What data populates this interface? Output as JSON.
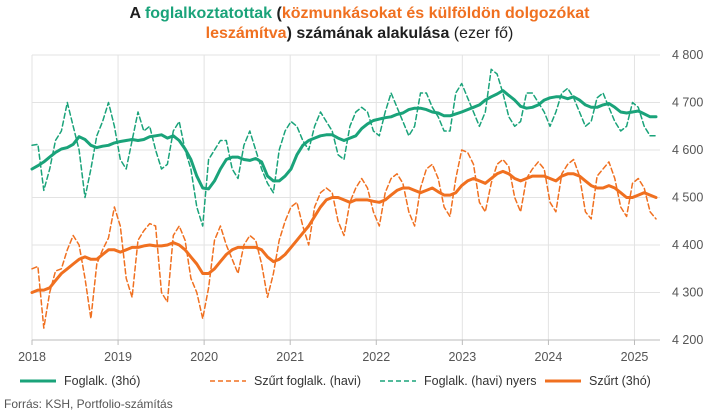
{
  "title": {
    "p1": "A ",
    "p2": "foglalkoztatottak",
    "p3": " (",
    "p4": "közmunkásokat és külföldön dolgozókat",
    "p5": "leszámítva",
    "p6": ") számának alakulása",
    "p7": " (ezer fő)"
  },
  "source": "Forrás: KSH, Portfolio-számítás",
  "colors": {
    "green": "#1aa37a",
    "orange": "#f07020",
    "grid": "#e3e3e3",
    "text": "#555555"
  },
  "chart_data": {
    "type": "line",
    "x_range": [
      2018.0,
      2025.25
    ],
    "x_ticks": [
      "2018",
      "2019",
      "2020",
      "2021",
      "2022",
      "2023",
      "2024",
      "2025"
    ],
    "ylim": [
      4200,
      4800
    ],
    "y_ticks": [
      "4 200",
      "4 300",
      "4 400",
      "4 500",
      "4 600",
      "4 700",
      "4 800"
    ],
    "y_axis_side": "right",
    "grid": true,
    "legend_position": "bottom",
    "series": [
      {
        "name": "Foglalk. (3hó)",
        "style": "solid",
        "color": "#1aa37a",
        "values": [
          4560,
          4567,
          4575,
          4585,
          4595,
          4602,
          4605,
          4612,
          4628,
          4622,
          4610,
          4605,
          4608,
          4610,
          4615,
          4618,
          4620,
          4622,
          4620,
          4622,
          4628,
          4630,
          4632,
          4625,
          4630,
          4620,
          4602,
          4580,
          4545,
          4520,
          4518,
          4535,
          4560,
          4580,
          4585,
          4585,
          4580,
          4578,
          4582,
          4575,
          4545,
          4535,
          4535,
          4545,
          4560,
          4590,
          4610,
          4620,
          4625,
          4630,
          4632,
          4632,
          4625,
          4620,
          4625,
          4630,
          4645,
          4655,
          4662,
          4665,
          4668,
          4670,
          4675,
          4678,
          4685,
          4688,
          4688,
          4685,
          4680,
          4678,
          4672,
          4672,
          4676,
          4680,
          4685,
          4690,
          4695,
          4705,
          4712,
          4718,
          4725,
          4715,
          4705,
          4692,
          4688,
          4690,
          4695,
          4705,
          4710,
          4712,
          4712,
          4708,
          4712,
          4705,
          4695,
          4690,
          4690,
          4695,
          4698,
          4690,
          4680,
          4678,
          4680,
          4682,
          4676,
          4670,
          4670
        ],
        "stroke_width": 3
      },
      {
        "name": "Szűrt foglalk. (havi)",
        "style": "dashed",
        "color": "#f07020",
        "values": [
          4350,
          4355,
          4225,
          4300,
          4345,
          4350,
          4390,
          4420,
          4400,
          4330,
          4245,
          4360,
          4390,
          4415,
          4480,
          4440,
          4330,
          4290,
          4410,
          4430,
          4445,
          4440,
          4300,
          4280,
          4420,
          4440,
          4410,
          4330,
          4300,
          4245,
          4310,
          4410,
          4440,
          4400,
          4370,
          4340,
          4400,
          4420,
          4410,
          4360,
          4290,
          4340,
          4410,
          4450,
          4480,
          4490,
          4440,
          4400,
          4480,
          4510,
          4520,
          4510,
          4450,
          4420,
          4490,
          4520,
          4540,
          4520,
          4470,
          4440,
          4510,
          4540,
          4550,
          4530,
          4470,
          4440,
          4520,
          4560,
          4570,
          4540,
          4480,
          4460,
          4540,
          4600,
          4595,
          4570,
          4490,
          4470,
          4530,
          4570,
          4580,
          4565,
          4500,
          4470,
          4540,
          4560,
          4575,
          4560,
          4490,
          4470,
          4550,
          4570,
          4580,
          4545,
          4470,
          4455,
          4545,
          4560,
          4575,
          4540,
          4480,
          4460,
          4530,
          4540,
          4520,
          4470,
          4455
        ]
      },
      {
        "name": "Foglalk. (havi) nyers",
        "style": "dashed",
        "color": "#1aa37a",
        "values": [
          4610,
          4612,
          4515,
          4560,
          4620,
          4640,
          4700,
          4650,
          4600,
          4500,
          4560,
          4630,
          4660,
          4700,
          4650,
          4580,
          4560,
          4620,
          4680,
          4640,
          4650,
          4600,
          4560,
          4570,
          4640,
          4660,
          4600,
          4560,
          4480,
          4440,
          4580,
          4600,
          4620,
          4620,
          4560,
          4540,
          4610,
          4640,
          4600,
          4560,
          4530,
          4510,
          4600,
          4640,
          4660,
          4650,
          4620,
          4600,
          4650,
          4680,
          4660,
          4640,
          4590,
          4580,
          4650,
          4680,
          4690,
          4680,
          4640,
          4630,
          4680,
          4720,
          4690,
          4660,
          4630,
          4650,
          4720,
          4720,
          4690,
          4670,
          4640,
          4640,
          4720,
          4740,
          4710,
          4680,
          4650,
          4680,
          4770,
          4760,
          4720,
          4670,
          4650,
          4660,
          4720,
          4720,
          4700,
          4680,
          4650,
          4680,
          4720,
          4730,
          4710,
          4680,
          4650,
          4660,
          4710,
          4720,
          4690,
          4660,
          4640,
          4650,
          4700,
          4690,
          4650,
          4630,
          4630
        ]
      },
      {
        "name": "Szűrt (3hó)",
        "style": "solid",
        "color": "#f07020",
        "values": [
          4300,
          4305,
          4305,
          4310,
          4325,
          4340,
          4350,
          4360,
          4370,
          4375,
          4370,
          4370,
          4380,
          4390,
          4390,
          4385,
          4390,
          4395,
          4395,
          4398,
          4400,
          4398,
          4398,
          4400,
          4405,
          4400,
          4390,
          4375,
          4360,
          4340,
          4340,
          4350,
          4365,
          4380,
          4390,
          4395,
          4395,
          4395,
          4395,
          4390,
          4375,
          4365,
          4370,
          4380,
          4395,
          4410,
          4425,
          4440,
          4460,
          4480,
          4495,
          4500,
          4500,
          4495,
          4490,
          4495,
          4495,
          4495,
          4492,
          4490,
          4495,
          4505,
          4515,
          4520,
          4520,
          4515,
          4510,
          4515,
          4520,
          4512,
          4505,
          4505,
          4510,
          4525,
          4535,
          4540,
          4535,
          4530,
          4540,
          4550,
          4555,
          4550,
          4540,
          4535,
          4540,
          4545,
          4545,
          4545,
          4540,
          4535,
          4545,
          4550,
          4550,
          4545,
          4535,
          4525,
          4520,
          4520,
          4525,
          4520,
          4510,
          4500,
          4500,
          4505,
          4510,
          4505,
          4500
        ],
        "stroke_width": 3
      }
    ]
  }
}
